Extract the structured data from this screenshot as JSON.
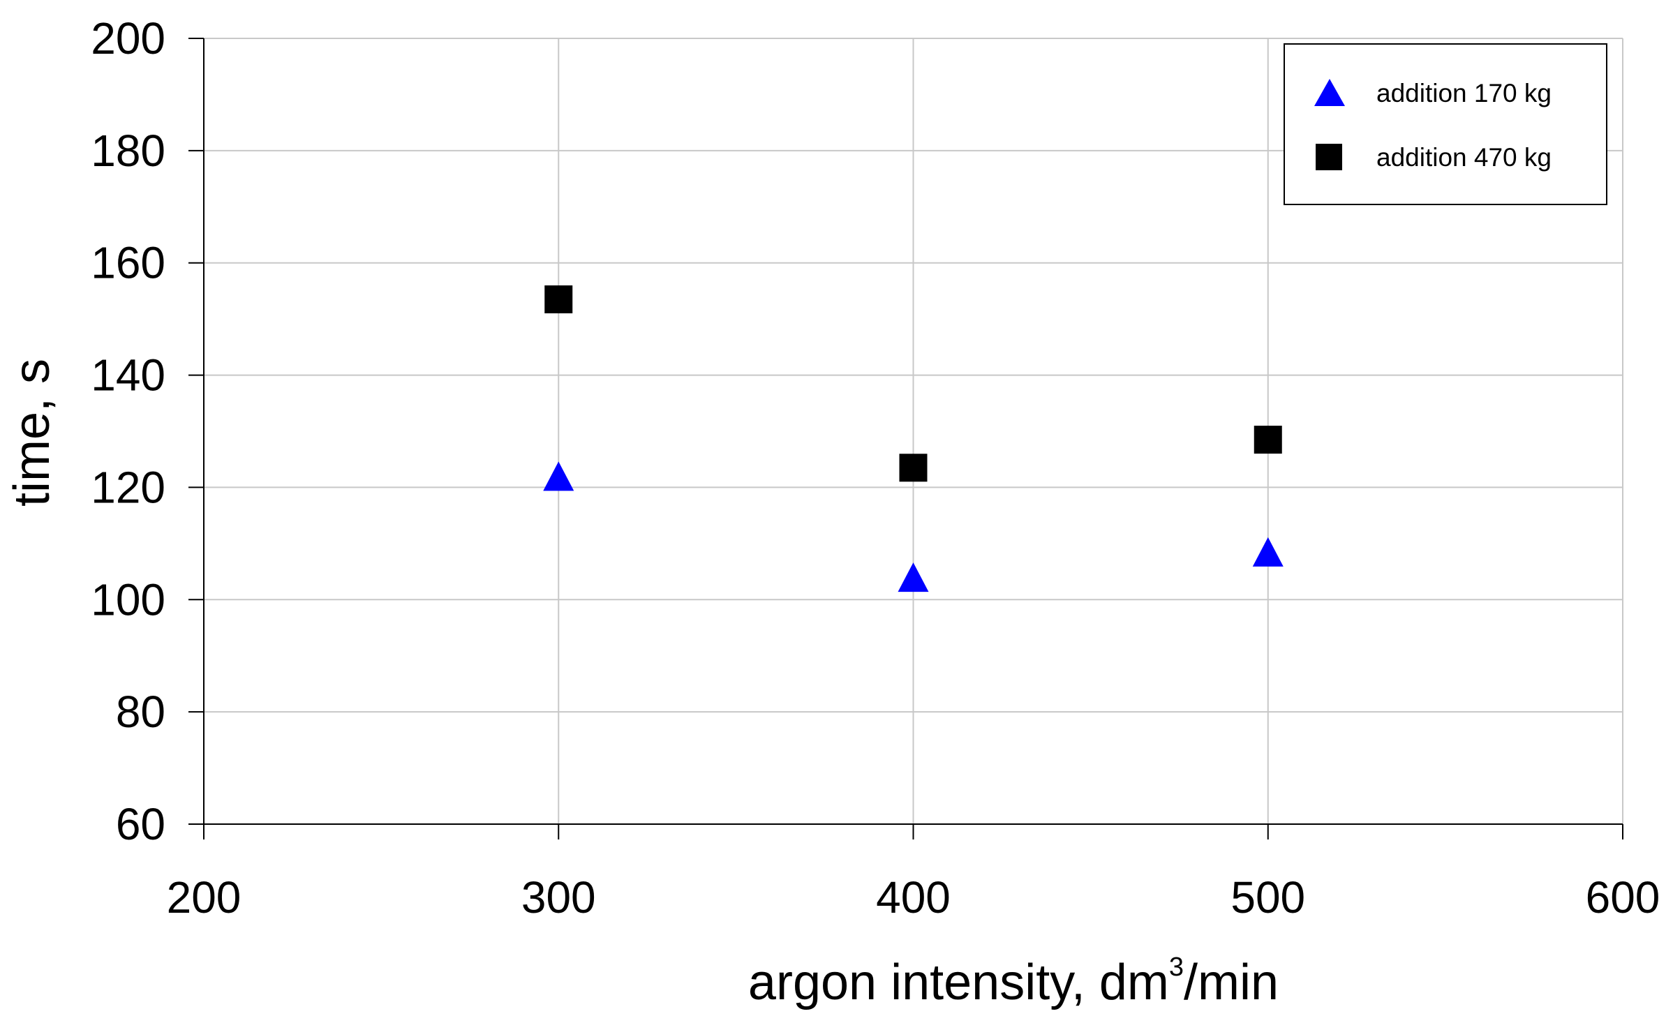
{
  "chart_data": {
    "type": "scatter",
    "title": "",
    "xlabel": "argon intensity, dm",
    "xlabel_superscript": "3",
    "xlabel_suffix": "/min",
    "ylabel": "time, s",
    "xlim": [
      200,
      600
    ],
    "ylim": [
      60,
      200
    ],
    "xticks": [
      200,
      300,
      400,
      500,
      600
    ],
    "yticks": [
      60,
      80,
      100,
      120,
      140,
      160,
      180,
      200
    ],
    "grid": true,
    "legend_position": "top-right",
    "series": [
      {
        "name": "addition 170 kg",
        "marker": "triangle",
        "color": "#0000ff",
        "x": [
          300,
          400,
          500
        ],
        "y": [
          122,
          104,
          108.5
        ]
      },
      {
        "name": "addition 470 kg",
        "marker": "square",
        "color": "#000000",
        "x": [
          300,
          400,
          500
        ],
        "y": [
          153.5,
          123.5,
          128.5
        ]
      }
    ]
  }
}
